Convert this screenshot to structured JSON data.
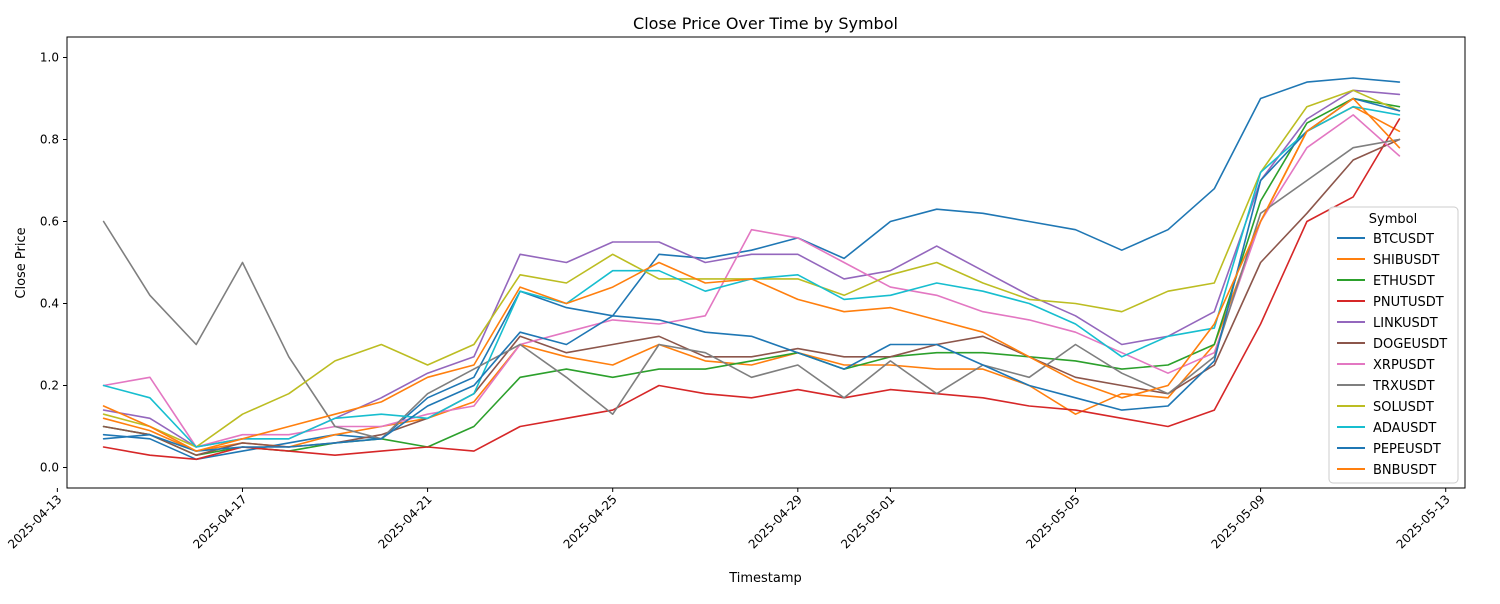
{
  "chart_data": {
    "type": "line",
    "title": "Close Price Over Time by Symbol",
    "xlabel": "Timestamp",
    "ylabel": "Close Price",
    "xlim": [
      "2025-04-13T05:00",
      "2025-05-13T10:00"
    ],
    "ylim": [
      -0.05,
      1.05
    ],
    "x_ticks": [
      "2025-04-13",
      "2025-04-17",
      "2025-04-21",
      "2025-04-25",
      "2025-04-29",
      "2025-05-01",
      "2025-05-05",
      "2025-05-09",
      "2025-05-13"
    ],
    "y_ticks": [
      "0.0",
      "0.2",
      "0.4",
      "0.6",
      "0.8",
      "1.0"
    ],
    "grid": false,
    "legend": {
      "title": "Symbol",
      "placement": "center-right"
    },
    "x": [
      "2025-04-14",
      "2025-04-15",
      "2025-04-16",
      "2025-04-17",
      "2025-04-18",
      "2025-04-19",
      "2025-04-20",
      "2025-04-21",
      "2025-04-22",
      "2025-04-23",
      "2025-04-24",
      "2025-04-25",
      "2025-04-26",
      "2025-04-27",
      "2025-04-28",
      "2025-04-29",
      "2025-04-30",
      "2025-05-01",
      "2025-05-02",
      "2025-05-03",
      "2025-05-04",
      "2025-05-05",
      "2025-05-06",
      "2025-05-07",
      "2025-05-08",
      "2025-05-09",
      "2025-05-10",
      "2025-05-11",
      "2025-05-12"
    ],
    "series": [
      {
        "name": "BTCUSDT",
        "color": "#1f77b4",
        "values": [
          0.08,
          0.07,
          0.02,
          0.04,
          0.06,
          0.08,
          0.07,
          0.17,
          0.22,
          0.43,
          0.39,
          0.37,
          0.52,
          0.51,
          0.53,
          0.56,
          0.51,
          0.6,
          0.63,
          0.62,
          0.6,
          0.58,
          0.53,
          0.58,
          0.68,
          0.9,
          0.94,
          0.95,
          0.94
        ]
      },
      {
        "name": "SHIBUSDT",
        "color": "#ff7f0e",
        "values": [
          0.12,
          0.09,
          0.04,
          0.06,
          0.05,
          0.08,
          0.1,
          0.12,
          0.16,
          0.3,
          0.27,
          0.25,
          0.3,
          0.26,
          0.25,
          0.28,
          0.25,
          0.25,
          0.24,
          0.24,
          0.2,
          0.13,
          0.18,
          0.17,
          0.3,
          0.6,
          0.82,
          0.88,
          0.82
        ]
      },
      {
        "name": "ETHUSDT",
        "color": "#2ca02c",
        "values": [
          0.1,
          0.08,
          0.03,
          0.05,
          0.04,
          0.06,
          0.07,
          0.05,
          0.1,
          0.22,
          0.24,
          0.22,
          0.24,
          0.24,
          0.26,
          0.28,
          0.24,
          0.27,
          0.28,
          0.28,
          0.27,
          0.26,
          0.24,
          0.25,
          0.3,
          0.65,
          0.84,
          0.9,
          0.88
        ]
      },
      {
        "name": "PNUTUSDT",
        "color": "#d62728",
        "values": [
          0.05,
          0.03,
          0.02,
          0.05,
          0.04,
          0.03,
          0.04,
          0.05,
          0.04,
          0.1,
          0.12,
          0.14,
          0.2,
          0.18,
          0.17,
          0.19,
          0.17,
          0.19,
          0.18,
          0.17,
          0.15,
          0.14,
          0.12,
          0.1,
          0.14,
          0.35,
          0.6,
          0.66,
          0.85
        ]
      },
      {
        "name": "LINKUSDT",
        "color": "#9467bd",
        "values": [
          0.14,
          0.12,
          0.05,
          0.07,
          0.07,
          0.12,
          0.17,
          0.23,
          0.27,
          0.52,
          0.5,
          0.55,
          0.55,
          0.5,
          0.52,
          0.52,
          0.46,
          0.48,
          0.54,
          0.48,
          0.42,
          0.37,
          0.3,
          0.32,
          0.38,
          0.7,
          0.85,
          0.92,
          0.91
        ]
      },
      {
        "name": "DOGEUSDT",
        "color": "#8c564b",
        "values": [
          0.1,
          0.08,
          0.03,
          0.06,
          0.05,
          0.06,
          0.08,
          0.12,
          0.18,
          0.32,
          0.28,
          0.3,
          0.32,
          0.27,
          0.27,
          0.29,
          0.27,
          0.27,
          0.3,
          0.32,
          0.27,
          0.22,
          0.2,
          0.18,
          0.25,
          0.5,
          0.62,
          0.75,
          0.8
        ]
      },
      {
        "name": "XRPUSDT",
        "color": "#e377c2",
        "values": [
          0.2,
          0.22,
          0.05,
          0.08,
          0.08,
          0.1,
          0.1,
          0.13,
          0.15,
          0.3,
          0.33,
          0.36,
          0.35,
          0.37,
          0.58,
          0.56,
          0.5,
          0.44,
          0.42,
          0.38,
          0.36,
          0.33,
          0.28,
          0.23,
          0.28,
          0.6,
          0.78,
          0.86,
          0.76
        ]
      },
      {
        "name": "TRXUSDT",
        "color": "#7f7f7f",
        "values": [
          0.6,
          0.42,
          0.3,
          0.5,
          0.27,
          0.1,
          0.07,
          0.18,
          0.24,
          0.3,
          0.22,
          0.13,
          0.3,
          0.28,
          0.22,
          0.25,
          0.17,
          0.26,
          0.18,
          0.25,
          0.22,
          0.3,
          0.23,
          0.18,
          0.27,
          0.62,
          0.7,
          0.78,
          0.8
        ]
      },
      {
        "name": "SOLUSDT",
        "color": "#bcbd22",
        "values": [
          0.13,
          0.1,
          0.05,
          0.13,
          0.18,
          0.26,
          0.3,
          0.25,
          0.3,
          0.47,
          0.45,
          0.52,
          0.46,
          0.46,
          0.46,
          0.46,
          0.42,
          0.47,
          0.5,
          0.45,
          0.41,
          0.4,
          0.38,
          0.43,
          0.45,
          0.72,
          0.88,
          0.92,
          0.87
        ]
      },
      {
        "name": "ADAUSDT",
        "color": "#17becf",
        "values": [
          0.2,
          0.17,
          0.05,
          0.07,
          0.07,
          0.12,
          0.13,
          0.12,
          0.18,
          0.43,
          0.4,
          0.48,
          0.48,
          0.43,
          0.46,
          0.47,
          0.41,
          0.42,
          0.45,
          0.43,
          0.4,
          0.35,
          0.27,
          0.32,
          0.34,
          0.72,
          0.82,
          0.88,
          0.86
        ]
      },
      {
        "name": "PEPEUSDT",
        "color": "#1f77b4",
        "values": [
          0.07,
          0.08,
          0.04,
          0.05,
          0.05,
          0.06,
          0.07,
          0.15,
          0.2,
          0.33,
          0.3,
          0.37,
          0.36,
          0.33,
          0.32,
          0.28,
          0.24,
          0.3,
          0.3,
          0.25,
          0.2,
          0.17,
          0.14,
          0.15,
          0.26,
          0.7,
          0.82,
          0.9,
          0.87
        ]
      },
      {
        "name": "BNBUSDT",
        "color": "#ff7f0e",
        "values": [
          0.15,
          0.1,
          0.04,
          0.07,
          0.1,
          0.13,
          0.16,
          0.22,
          0.25,
          0.44,
          0.4,
          0.44,
          0.5,
          0.45,
          0.46,
          0.41,
          0.38,
          0.39,
          0.36,
          0.33,
          0.27,
          0.21,
          0.17,
          0.2,
          0.35,
          0.6,
          0.82,
          0.9,
          0.78
        ]
      }
    ]
  }
}
